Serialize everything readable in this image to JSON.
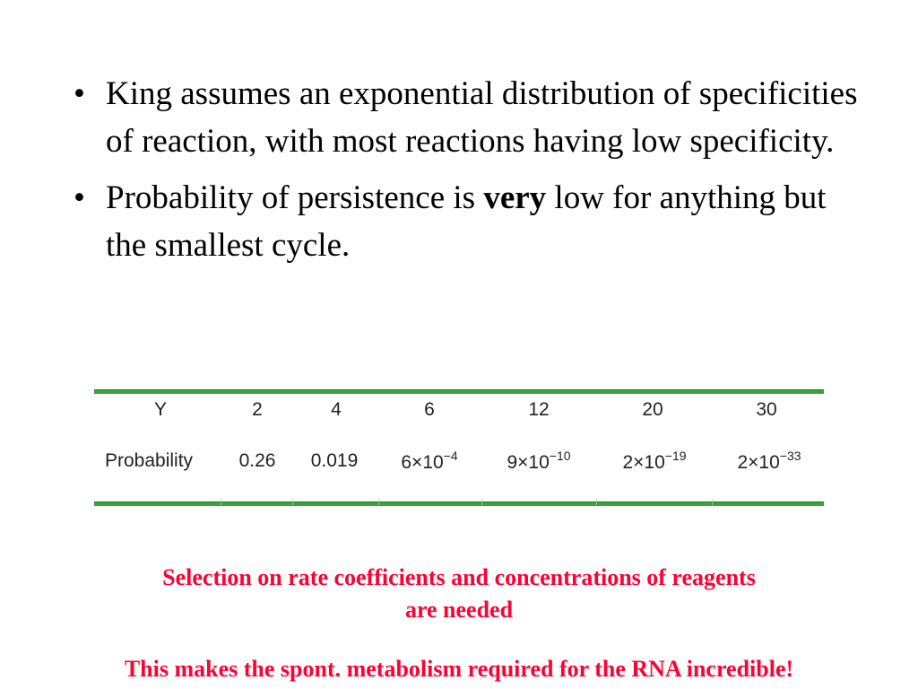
{
  "bullets": [
    {
      "text_before": "King assumes an exponential distribution of specificities of reaction, with most reactions having low specificity.",
      "bold": "",
      "text_after": ""
    },
    {
      "text_before": "Probability of persistence is ",
      "bold": "very",
      "text_after": " low for anything but the smallest cycle."
    }
  ],
  "bullet_symbol": "•",
  "table": {
    "header_label": "Y",
    "row_label": "Probability",
    "columns": [
      {
        "y": "2",
        "mantissa": "0.26",
        "times": "",
        "base": "",
        "exponent": ""
      },
      {
        "y": "4",
        "mantissa": "0.019",
        "times": "",
        "base": "",
        "exponent": ""
      },
      {
        "y": "6",
        "mantissa": "6",
        "times": "×",
        "base": "10",
        "exponent": "−4"
      },
      {
        "y": "12",
        "mantissa": "9",
        "times": "×",
        "base": "10",
        "exponent": "−10"
      },
      {
        "y": "20",
        "mantissa": "2",
        "times": "×",
        "base": "10",
        "exponent": "−19"
      },
      {
        "y": "30",
        "mantissa": "2",
        "times": "×",
        "base": "10",
        "exponent": "−33"
      }
    ],
    "rule_color": "#35a63a"
  },
  "notes": {
    "line1": "Selection on rate coefficients and concentrations of reagents",
    "line2": "are  needed",
    "line3": "This makes the spont. metabolism required for the RNA incredible!",
    "color": "#ff0033"
  }
}
